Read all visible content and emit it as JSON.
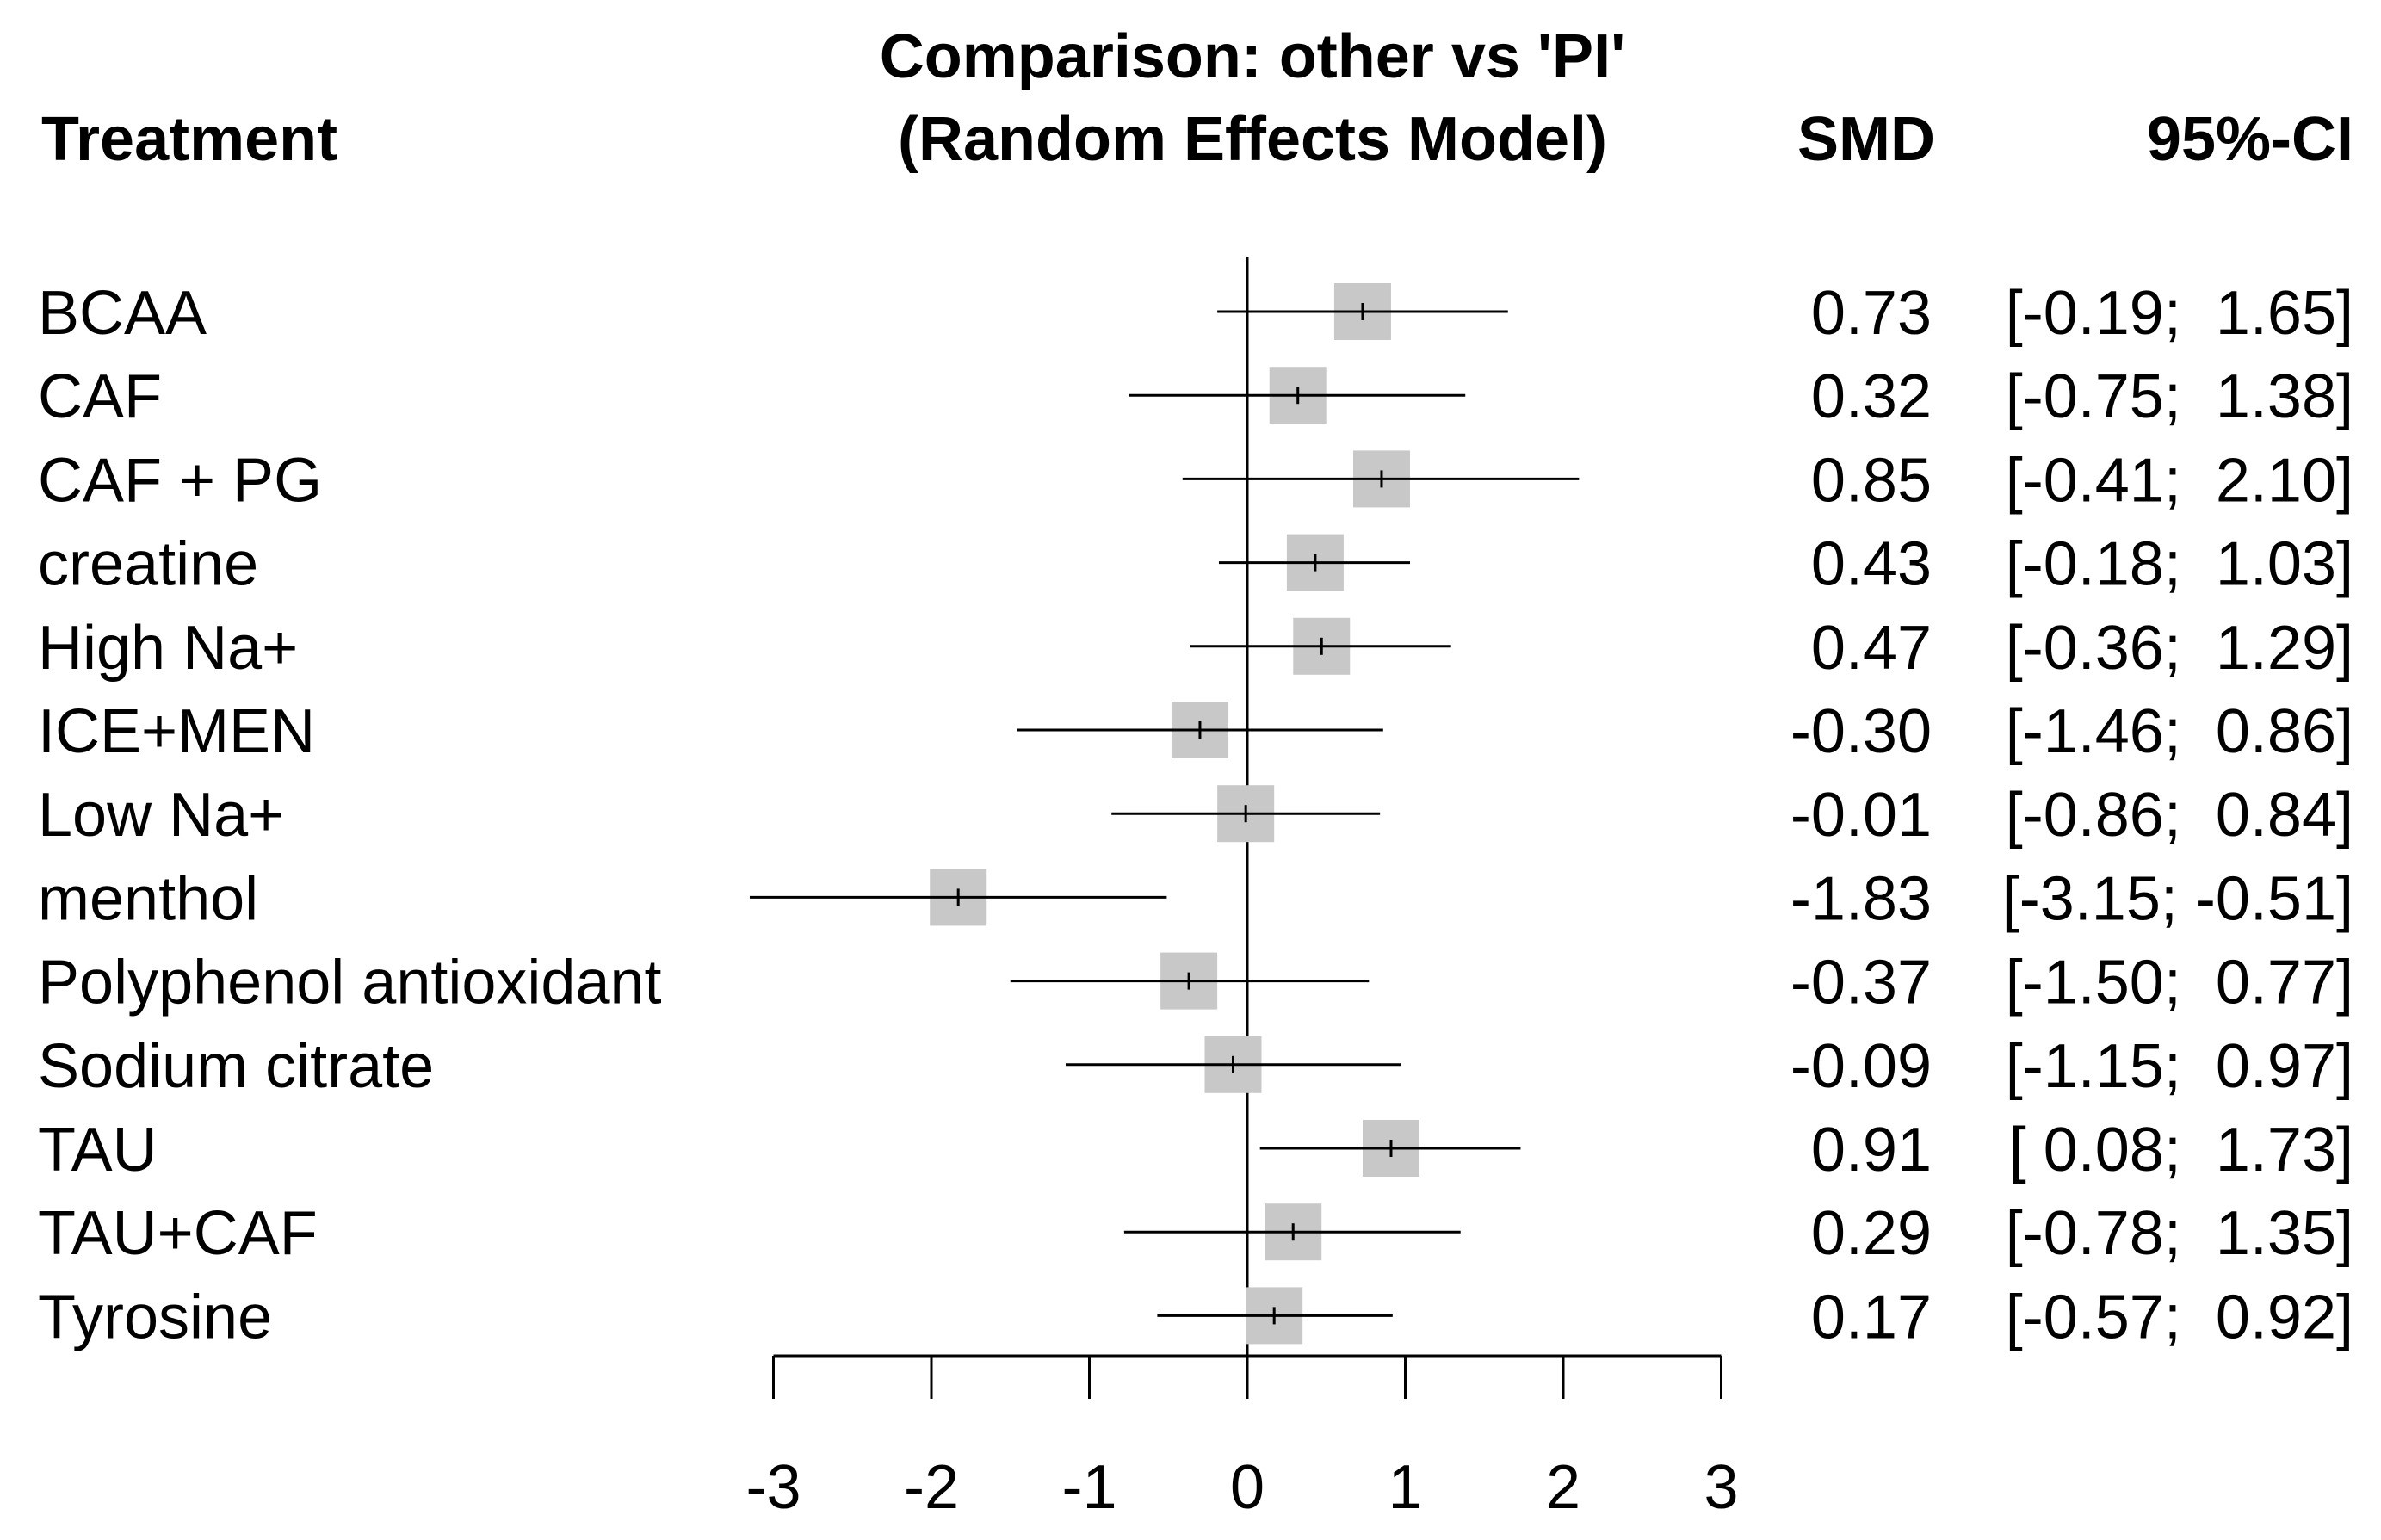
{
  "chart_data": {
    "type": "forest",
    "title_line1": "Comparison: other vs 'PI'",
    "title_line2": "(Random Effects Model)",
    "column_headers": {
      "treatment": "Treatment",
      "estimate": "SMD",
      "ci": "95%-CI"
    },
    "xlim": [
      -3,
      3
    ],
    "xticks": [
      "-3",
      "-2",
      "-1",
      "0",
      "1",
      "2",
      "3"
    ],
    "reference_line": 0,
    "colors": {
      "box": "#c8c8c8",
      "line": "#000000"
    },
    "rows": [
      {
        "treatment": "BCAA",
        "smd": 0.73,
        "lower": -0.19,
        "upper": 1.65,
        "smd_text": "0.73",
        "ci_text": "[-0.19;  1.65]"
      },
      {
        "treatment": "CAF",
        "smd": 0.32,
        "lower": -0.75,
        "upper": 1.38,
        "smd_text": "0.32",
        "ci_text": "[-0.75;  1.38]"
      },
      {
        "treatment": "CAF + PG",
        "smd": 0.85,
        "lower": -0.41,
        "upper": 2.1,
        "smd_text": "0.85",
        "ci_text": "[-0.41;  2.10]"
      },
      {
        "treatment": "creatine",
        "smd": 0.43,
        "lower": -0.18,
        "upper": 1.03,
        "smd_text": "0.43",
        "ci_text": "[-0.18;  1.03]"
      },
      {
        "treatment": "High Na+",
        "smd": 0.47,
        "lower": -0.36,
        "upper": 1.29,
        "smd_text": "0.47",
        "ci_text": "[-0.36;  1.29]"
      },
      {
        "treatment": "ICE+MEN",
        "smd": -0.3,
        "lower": -1.46,
        "upper": 0.86,
        "smd_text": "-0.30",
        "ci_text": "[-1.46;  0.86]"
      },
      {
        "treatment": "Low Na+",
        "smd": -0.01,
        "lower": -0.86,
        "upper": 0.84,
        "smd_text": "-0.01",
        "ci_text": "[-0.86;  0.84]"
      },
      {
        "treatment": "menthol",
        "smd": -1.83,
        "lower": -3.15,
        "upper": -0.51,
        "smd_text": "-1.83",
        "ci_text": "[-3.15; -0.51]"
      },
      {
        "treatment": "Polyphenol antioxidant",
        "smd": -0.37,
        "lower": -1.5,
        "upper": 0.77,
        "smd_text": "-0.37",
        "ci_text": "[-1.50;  0.77]"
      },
      {
        "treatment": "Sodium citrate",
        "smd": -0.09,
        "lower": -1.15,
        "upper": 0.97,
        "smd_text": "-0.09",
        "ci_text": "[-1.15;  0.97]"
      },
      {
        "treatment": "TAU",
        "smd": 0.91,
        "lower": 0.08,
        "upper": 1.73,
        "smd_text": "0.91",
        "ci_text": "[ 0.08;  1.73]"
      },
      {
        "treatment": "TAU+CAF",
        "smd": 0.29,
        "lower": -0.78,
        "upper": 1.35,
        "smd_text": "0.29",
        "ci_text": "[-0.78;  1.35]"
      },
      {
        "treatment": "Tyrosine",
        "smd": 0.17,
        "lower": -0.57,
        "upper": 0.92,
        "smd_text": "0.17",
        "ci_text": "[-0.57;  0.92]"
      }
    ]
  }
}
